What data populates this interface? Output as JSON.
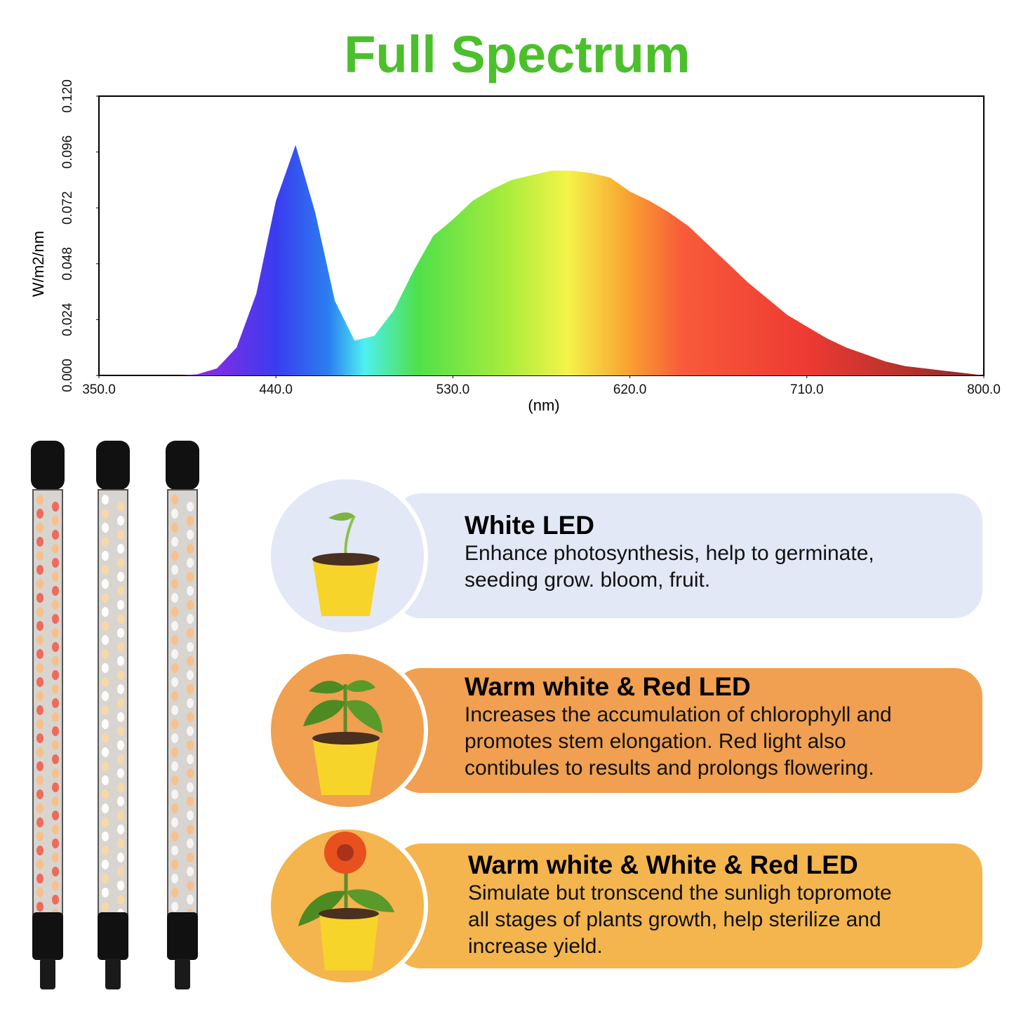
{
  "chart_data": {
    "type": "area",
    "title": "Full Spectrum",
    "x_label": "(nm)",
    "y_label": "W/m2/nm",
    "x": [
      350,
      360,
      370,
      380,
      390,
      400,
      410,
      420,
      430,
      440,
      450,
      460,
      470,
      480,
      490,
      500,
      510,
      520,
      530,
      540,
      550,
      560,
      570,
      580,
      590,
      600,
      610,
      620,
      630,
      640,
      650,
      660,
      670,
      680,
      690,
      700,
      710,
      720,
      730,
      740,
      750,
      760,
      770,
      780,
      790,
      800
    ],
    "values": [
      0,
      0,
      0,
      0,
      0,
      0.0005,
      0.003,
      0.012,
      0.035,
      0.075,
      0.099,
      0.07,
      0.032,
      0.015,
      0.017,
      0.028,
      0.045,
      0.06,
      0.067,
      0.075,
      0.08,
      0.084,
      0.086,
      0.088,
      0.088,
      0.087,
      0.085,
      0.079,
      0.075,
      0.07,
      0.064,
      0.056,
      0.048,
      0.04,
      0.033,
      0.026,
      0.021,
      0.016,
      0.012,
      0.009,
      0.006,
      0.004,
      0.003,
      0.002,
      0.001,
      0
    ],
    "xlim": [
      350,
      800
    ],
    "xticks": [
      {
        "value": 350,
        "label": "350.0"
      },
      {
        "value": 440,
        "label": "440.0"
      },
      {
        "value": 530,
        "label": "530.0"
      },
      {
        "value": 620,
        "label": "620.0"
      },
      {
        "value": 710,
        "label": "710.0"
      },
      {
        "value": 800,
        "label": "800.0"
      }
    ],
    "ylim": [
      0,
      0.12
    ],
    "yticks": [
      {
        "value": 0,
        "label": "0.000"
      },
      {
        "value": 0.024,
        "label": "0.024"
      },
      {
        "value": 0.048,
        "label": "0.048"
      },
      {
        "value": 0.072,
        "label": "0.072"
      },
      {
        "value": 0.096,
        "label": "0.096"
      },
      {
        "value": 0.12,
        "label": "0.120"
      }
    ]
  },
  "cards": [
    {
      "title": "White LED",
      "lines": [
        "Enhance photosynthesis, help to germinate,",
        "seeding grow. bloom, fruit."
      ]
    },
    {
      "title": "Warm white & Red LED",
      "lines": [
        "Increases the accumulation of chlorophyll and",
        "promotes stem elongation. Red light also",
        "contibules to results and prolongs flowering."
      ]
    },
    {
      "title": "Warm white & White & Red LED",
      "lines": [
        "Simulate but tronscend the sunligh topromote",
        "all stages of plants growth, help sterilize and",
        "increase yield."
      ]
    }
  ]
}
